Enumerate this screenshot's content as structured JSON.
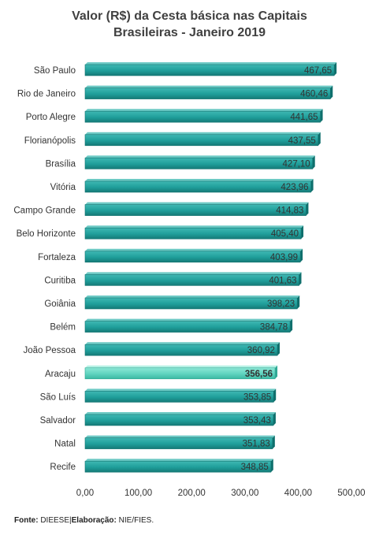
{
  "chart_data": {
    "type": "bar",
    "orientation": "horizontal",
    "title": [
      "Valor (R$) da Cesta básica nas Capitais",
      "Brasileiras - Janeiro 2019"
    ],
    "categories": [
      "São Paulo",
      "Rio de Janeiro",
      "Porto Alegre",
      "Florianópolis",
      "Brasília",
      "Vitória",
      "Campo Grande",
      "Belo Horizonte",
      "Fortaleza",
      "Curitiba",
      "Goiânia",
      "Belém",
      "João Pessoa",
      "Aracaju",
      "São Luís",
      "Salvador",
      "Natal",
      "Recife"
    ],
    "values": [
      467.65,
      460.46,
      441.65,
      437.55,
      427.1,
      423.96,
      414.83,
      405.4,
      403.99,
      401.63,
      398.23,
      384.78,
      360.92,
      356.56,
      353.85,
      353.43,
      351.83,
      348.85
    ],
    "value_labels": [
      "467,65",
      "460,46",
      "441,65",
      "437,55",
      "427,10",
      "423,96",
      "414,83",
      "405,40",
      "403,99",
      "401,63",
      "398,23",
      "384,78",
      "360,92",
      "356,56",
      "353,85",
      "353,43",
      "351,83",
      "348,85"
    ],
    "highlight": "Aracaju",
    "xlim": [
      0,
      500
    ],
    "x_ticks": [
      0,
      100,
      200,
      300,
      400,
      500
    ],
    "x_tick_labels": [
      "0,00",
      "100,00",
      "200,00",
      "300,00",
      "400,00",
      "500,00"
    ],
    "xlabel": "",
    "ylabel": "",
    "grid": false,
    "colors": {
      "bar": "#1f9e9a",
      "bar_dark": "#0e6f6c",
      "highlight": "#5fd3bf",
      "highlight_dark": "#2fa894"
    }
  },
  "footer": {
    "source_label": "Fonte:",
    "source_value": "DIEESE",
    "separator": "|",
    "elab_label": "Elaboração:",
    "elab_value": "NIE/FIES."
  }
}
